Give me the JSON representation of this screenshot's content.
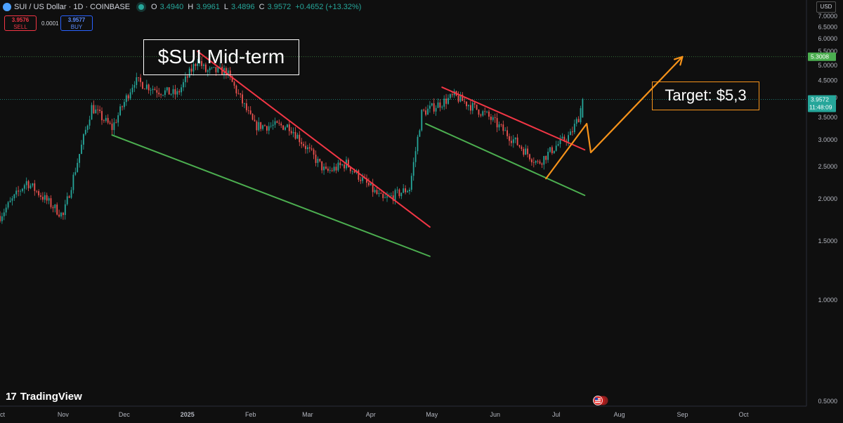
{
  "header": {
    "symbol_text": "SUI / US Dollar · 1D · COINBASE",
    "open_label": "O",
    "open": "3.4940",
    "high_label": "H",
    "high": "3.9961",
    "low_label": "L",
    "low": "3.4896",
    "close_label": "C",
    "close": "3.9572",
    "change": "+0.4652 (+13.32%)"
  },
  "trade": {
    "sell_price": "3.9576",
    "sell_label": "SELL",
    "spread": "0.0001",
    "buy_price": "3.9577",
    "buy_label": "BUY"
  },
  "currency": "USD",
  "annotations": {
    "title": "$SUI Mid-term",
    "target": "Target: $5,3"
  },
  "brand": "TradingView",
  "colors": {
    "background": "#0f0f0f",
    "up": "#26a69a",
    "down": "#ef5350",
    "resistance": "#f23645",
    "support": "#4caf50",
    "target": "#f7931a"
  },
  "chart_data": {
    "type": "candlestick",
    "timeframe": "1D",
    "y_axis_scale": "log",
    "ylim": [
      0.48,
      7.2
    ],
    "y_ticks": [
      "7.0000",
      "6.5000",
      "6.0000",
      "5.5000",
      "5.0000",
      "4.5000",
      "4.0000",
      "3.5000",
      "3.0000",
      "2.5000",
      "2.0000",
      "1.5000",
      "1.0000",
      "0.5000"
    ],
    "x_ticks": [
      "Oct",
      "Nov",
      "Dec",
      "2025",
      "Feb",
      "Mar",
      "Apr",
      "May",
      "Jun",
      "Jul",
      "Aug",
      "Sep",
      "Oct"
    ],
    "price_labels": [
      {
        "value": "5.3008",
        "price": 5.3008,
        "color": "#4caf50"
      },
      {
        "value": "3.9572",
        "countdown": "11:48:09",
        "price": 3.9572,
        "color": "#26a69a"
      }
    ],
    "candle_count": 290,
    "key_points": [
      {
        "date": "2024-10-01",
        "close": 1.78
      },
      {
        "date": "2024-10-14",
        "close": 2.25
      },
      {
        "date": "2024-11-01",
        "close": 1.78
      },
      {
        "date": "2024-11-15",
        "close": 3.75
      },
      {
        "date": "2024-11-25",
        "close": 3.25
      },
      {
        "date": "2024-12-06",
        "close": 4.5
      },
      {
        "date": "2024-12-18",
        "close": 4.2
      },
      {
        "date": "2024-12-27",
        "close": 4.1
      },
      {
        "date": "2025-01-06",
        "close": 5.2
      },
      {
        "date": "2025-01-10",
        "close": 4.8
      },
      {
        "date": "2025-01-20",
        "close": 4.8
      },
      {
        "date": "2025-02-03",
        "close": 3.3
      },
      {
        "date": "2025-02-20",
        "close": 3.3
      },
      {
        "date": "2025-03-10",
        "close": 2.4
      },
      {
        "date": "2025-03-20",
        "close": 2.55
      },
      {
        "date": "2025-04-07",
        "close": 1.98
      },
      {
        "date": "2025-04-20",
        "close": 2.15
      },
      {
        "date": "2025-04-26",
        "close": 3.6
      },
      {
        "date": "2025-05-12",
        "close": 4.05
      },
      {
        "date": "2025-05-28",
        "close": 3.55
      },
      {
        "date": "2025-06-10",
        "close": 3.0
      },
      {
        "date": "2025-06-22",
        "close": 2.55
      },
      {
        "date": "2025-07-01",
        "close": 2.88
      },
      {
        "date": "2025-07-08",
        "close": 3.1
      },
      {
        "date": "2025-07-12",
        "close": 3.5
      },
      {
        "date": "2025-07-14",
        "open": 3.494,
        "high": 3.9961,
        "low": 3.4896,
        "close": 3.9572
      }
    ],
    "trendlines": [
      {
        "name": "resistance-1",
        "color": "#f23645",
        "points": [
          {
            "date": "2025-01-06",
            "price": 5.5
          },
          {
            "date": "2025-04-30",
            "price": 1.65
          }
        ]
      },
      {
        "name": "support-1",
        "color": "#4caf50",
        "points": [
          {
            "date": "2024-11-25",
            "price": 3.1
          },
          {
            "date": "2025-04-30",
            "price": 1.35
          }
        ]
      },
      {
        "name": "resistance-2",
        "color": "#f23645",
        "points": [
          {
            "date": "2025-05-06",
            "price": 4.3
          },
          {
            "date": "2025-07-15",
            "price": 2.8
          }
        ]
      },
      {
        "name": "support-2",
        "color": "#4caf50",
        "points": [
          {
            "date": "2025-04-28",
            "price": 3.35
          },
          {
            "date": "2025-07-15",
            "price": 2.05
          }
        ]
      }
    ],
    "projection": {
      "color": "#f7931a",
      "points": [
        {
          "date": "2025-06-26",
          "price": 2.3
        },
        {
          "date": "2025-07-16",
          "price": 3.35
        },
        {
          "date": "2025-07-18",
          "price": 2.75
        },
        {
          "date": "2025-09-01",
          "price": 5.3
        }
      ]
    },
    "target_level": 5.3008
  }
}
